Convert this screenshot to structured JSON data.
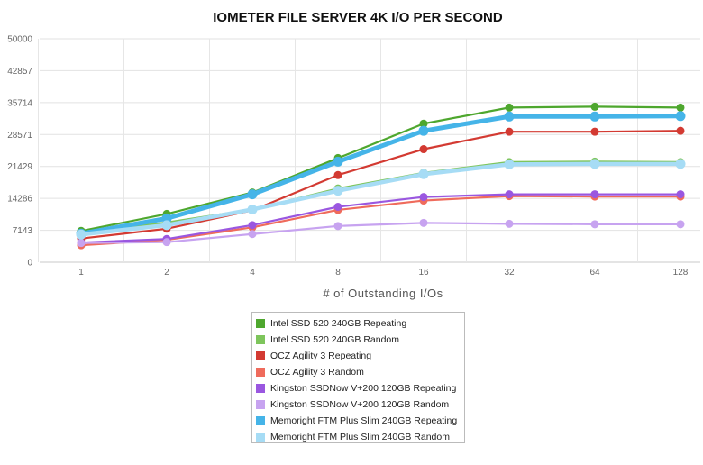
{
  "chart_data": {
    "type": "line",
    "title": "IOMETER FILE SERVER 4K I/O PER SECOND",
    "xlabel": "# of Outstanding I/Os",
    "ylabel": "",
    "x": [
      "1",
      "2",
      "4",
      "8",
      "16",
      "32",
      "64",
      "128"
    ],
    "ylim": [
      0,
      50000
    ],
    "yticks": [
      "0",
      "7143",
      "14286",
      "21429",
      "28571",
      "35714",
      "42857",
      "50000"
    ],
    "grid": true,
    "legend_position": "bottom",
    "series": [
      {
        "name": "Intel SSD 520 240GB Repeating",
        "color": "#4ea72e",
        "values": [
          7000,
          10800,
          15600,
          23300,
          31000,
          34600,
          34800,
          34600
        ]
      },
      {
        "name": "Intel SSD 520 240GB Random",
        "color": "#7ec55c",
        "values": [
          6500,
          8900,
          11800,
          16500,
          20000,
          22400,
          22500,
          22400
        ]
      },
      {
        "name": "OCZ Agility 3 Repeating",
        "color": "#d33a32",
        "values": [
          5300,
          7500,
          11600,
          19500,
          25300,
          29200,
          29200,
          29400
        ]
      },
      {
        "name": "OCZ Agility 3 Random",
        "color": "#ef6b5c",
        "values": [
          3800,
          5000,
          7800,
          11700,
          13800,
          14800,
          14700,
          14700
        ]
      },
      {
        "name": "Kingston SSDNow V+200 120GB Repeating",
        "color": "#9a57e0",
        "values": [
          4400,
          5200,
          8300,
          12400,
          14600,
          15200,
          15200,
          15200
        ]
      },
      {
        "name": "Kingston SSDNow V+200 120GB Random",
        "color": "#c7a3f0",
        "values": [
          4300,
          4500,
          6300,
          8100,
          8800,
          8600,
          8500,
          8500
        ]
      },
      {
        "name": "Memoright FTM Plus Slim 240GB Repeating",
        "color": "#45b4e8",
        "values": [
          6400,
          9800,
          15200,
          22500,
          29400,
          32600,
          32600,
          32700
        ]
      },
      {
        "name": "Memoright FTM Plus Slim 240GB Random",
        "color": "#a6dcf5",
        "values": [
          6200,
          8300,
          11800,
          16000,
          19700,
          21900,
          22000,
          22000
        ]
      }
    ]
  }
}
